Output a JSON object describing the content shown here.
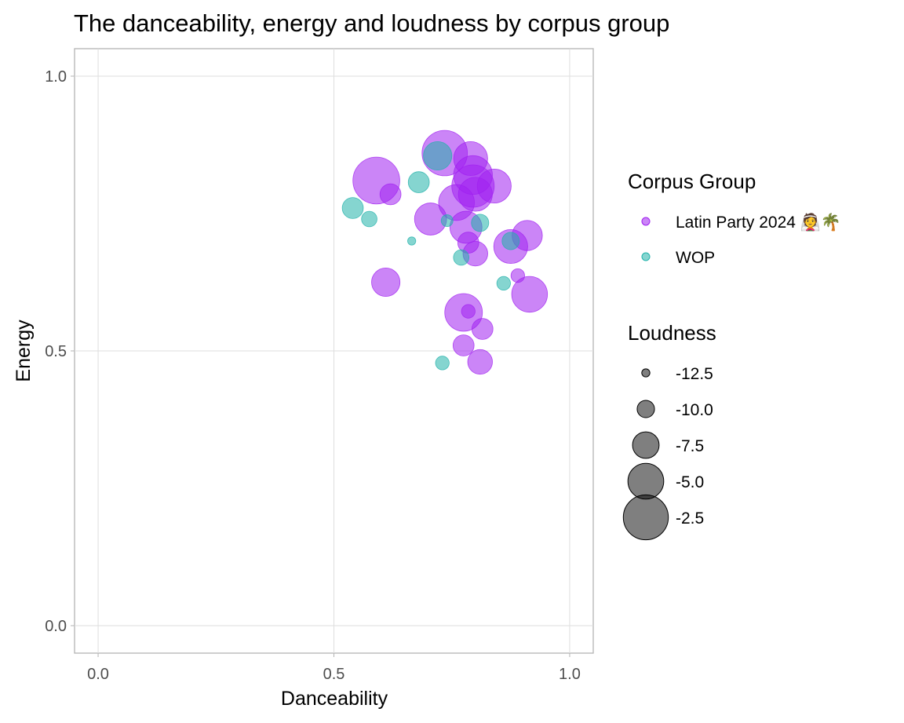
{
  "chart_data": {
    "type": "scatter",
    "title": "The danceability, energy and loudness by corpus group",
    "xlabel": "Danceability",
    "ylabel": "Energy",
    "xlim": [
      -0.05,
      1.05
    ],
    "ylim": [
      -0.05,
      1.05
    ],
    "x_ticks": [
      "0.0",
      "0.5",
      "1.0"
    ],
    "y_ticks": [
      "0.0",
      "0.5",
      "1.0"
    ],
    "grid": true,
    "legend_position": "right",
    "colors": {
      "Latin Party 2024": "#a020f0",
      "WOP": "#20b2aa"
    },
    "color_legend": {
      "title": "Corpus Group",
      "entries": [
        "Latin Party 2024 👰🌴",
        "WOP"
      ]
    },
    "size_legend": {
      "title": "Loudness",
      "entries": [
        "-12.5",
        "-10.0",
        "-7.5",
        "-5.0",
        "-2.5"
      ],
      "values": [
        -12.5,
        -10.0,
        -7.5,
        -5.0,
        -2.5
      ]
    },
    "series": [
      {
        "name": "Latin Party 2024 👰🌴",
        "points": [
          {
            "x": 0.59,
            "y": 0.81,
            "loudness": -2.0
          },
          {
            "x": 0.62,
            "y": 0.785,
            "loudness": -9.0
          },
          {
            "x": 0.61,
            "y": 0.625,
            "loudness": -7.0
          },
          {
            "x": 0.705,
            "y": 0.74,
            "loudness": -6.0
          },
          {
            "x": 0.735,
            "y": 0.86,
            "loudness": -2.4
          },
          {
            "x": 0.76,
            "y": 0.77,
            "loudness": -5.0
          },
          {
            "x": 0.78,
            "y": 0.725,
            "loudness": -6.0
          },
          {
            "x": 0.79,
            "y": 0.85,
            "loudness": -5.5
          },
          {
            "x": 0.795,
            "y": 0.82,
            "loudness": -4.2
          },
          {
            "x": 0.795,
            "y": 0.8,
            "loudness": -3.2
          },
          {
            "x": 0.8,
            "y": 0.785,
            "loudness": -5.5
          },
          {
            "x": 0.84,
            "y": 0.8,
            "loudness": -5.5
          },
          {
            "x": 0.785,
            "y": 0.697,
            "loudness": -9.0
          },
          {
            "x": 0.8,
            "y": 0.677,
            "loudness": -8.0
          },
          {
            "x": 0.875,
            "y": 0.69,
            "loudness": -5.5
          },
          {
            "x": 0.91,
            "y": 0.71,
            "loudness": -6.5
          },
          {
            "x": 0.89,
            "y": 0.637,
            "loudness": -11.0
          },
          {
            "x": 0.915,
            "y": 0.603,
            "loudness": -5.0
          },
          {
            "x": 0.775,
            "y": 0.57,
            "loudness": -4.5
          },
          {
            "x": 0.785,
            "y": 0.572,
            "loudness": -11.0
          },
          {
            "x": 0.815,
            "y": 0.54,
            "loudness": -9.0
          },
          {
            "x": 0.775,
            "y": 0.51,
            "loudness": -9.0
          },
          {
            "x": 0.81,
            "y": 0.48,
            "loudness": -8.0
          }
        ]
      },
      {
        "name": "WOP",
        "points": [
          {
            "x": 0.54,
            "y": 0.76,
            "loudness": -9.0
          },
          {
            "x": 0.575,
            "y": 0.74,
            "loudness": -10.5
          },
          {
            "x": 0.68,
            "y": 0.807,
            "loudness": -9.0
          },
          {
            "x": 0.72,
            "y": 0.855,
            "loudness": -7.0
          },
          {
            "x": 0.665,
            "y": 0.7,
            "loudness": -12.5
          },
          {
            "x": 0.74,
            "y": 0.737,
            "loudness": -11.5
          },
          {
            "x": 0.81,
            "y": 0.733,
            "loudness": -10.0
          },
          {
            "x": 0.77,
            "y": 0.67,
            "loudness": -10.5
          },
          {
            "x": 0.875,
            "y": 0.7,
            "loudness": -10.0
          },
          {
            "x": 0.86,
            "y": 0.623,
            "loudness": -11.0
          },
          {
            "x": 0.73,
            "y": 0.478,
            "loudness": -11.0
          }
        ]
      }
    ]
  }
}
